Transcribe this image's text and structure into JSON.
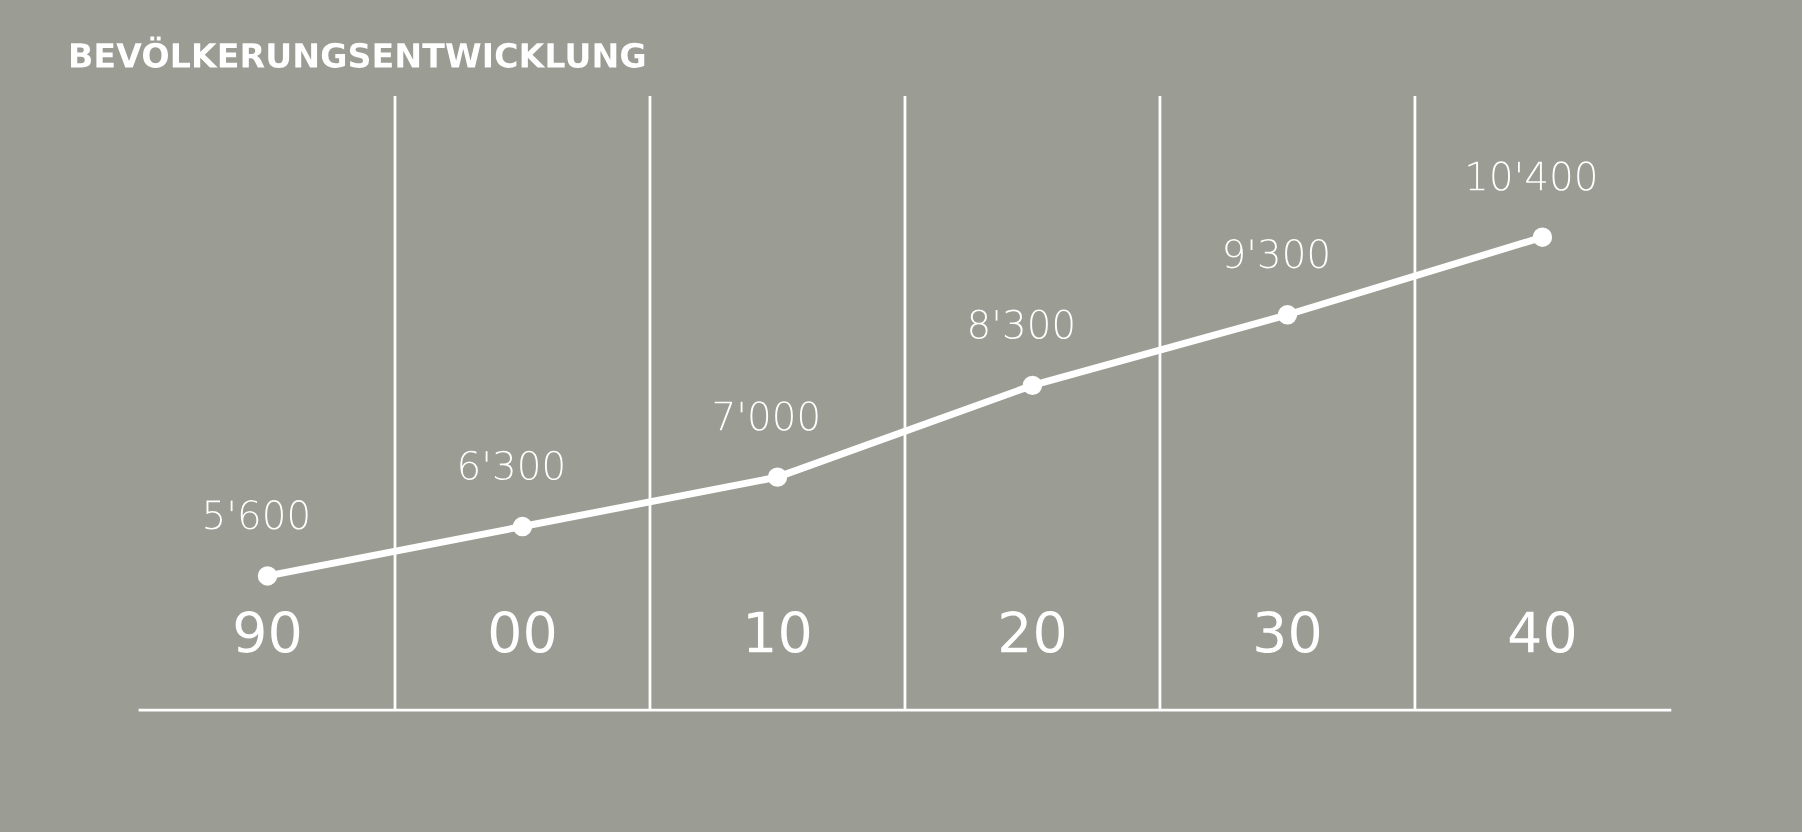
{
  "chart_data": {
    "type": "line",
    "title": "BEVÖLKERUNGSENTWICKLUNG",
    "categories": [
      "90",
      "00",
      "10",
      "20",
      "30",
      "40"
    ],
    "series": [
      {
        "color": "#ffffff",
        "values": [
          5600,
          6300,
          7000,
          8300,
          9300,
          10400
        ],
        "value_labels": [
          "5'600",
          "6'300",
          "7'000",
          "8'300",
          "9'300",
          "10'400"
        ]
      }
    ],
    "ylim": [
      3700,
      12400
    ],
    "grid": "x",
    "marker": "circle",
    "line_style": "solid",
    "tick_labels": "x",
    "legend": false
  }
}
